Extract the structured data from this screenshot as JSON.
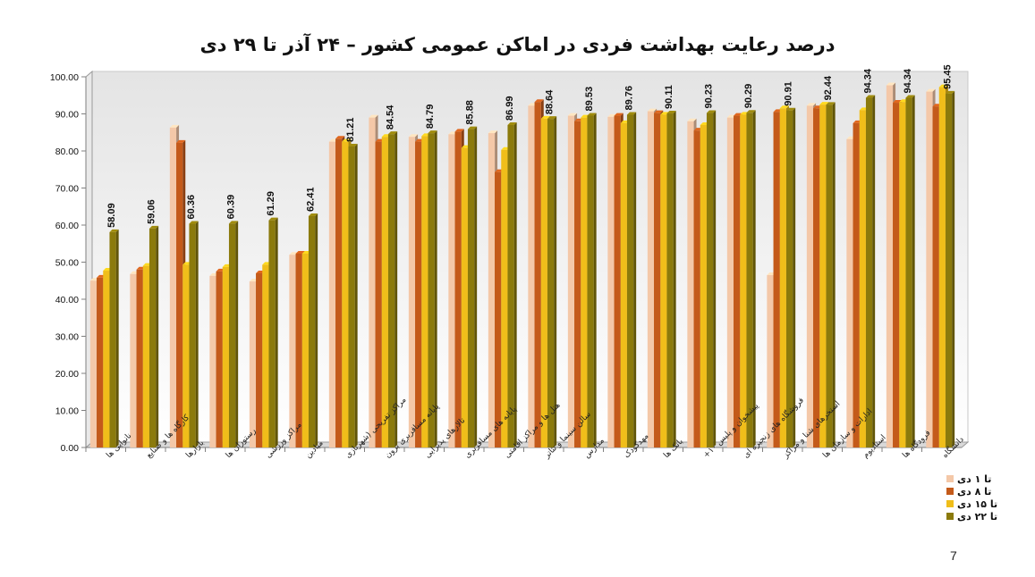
{
  "chart_data": {
    "type": "bar",
    "title": "درصد رعایت بهداشت فردی در اماکن عمومی کشور  –  ۲۴ آذر تا  ۲۹ دی",
    "xlabel": "",
    "ylabel": "",
    "ylim": [
      0,
      100
    ],
    "yticks": [
      "0.00",
      "10.00",
      "20.00",
      "30.00",
      "40.00",
      "50.00",
      "60.00",
      "70.00",
      "80.00",
      "90.00",
      "100.00"
    ],
    "grid": false,
    "legend_position": "right",
    "categories": [
      "نانوایی ها",
      "کارگاه ها و صنایع ",
      "بازارها",
      "رستوران ها",
      "مراکز ورزشی",
      "میادین",
      "مراکز تفریحی (شهربازی ",
      "پایانه مسافربری برون ",
      "تالارهای پذیرایی",
      "پایانه های مسافربری",
      "هتل ها و مراکز اقامتی",
      "سالن سینما و تئاتر",
      "مدارس",
      "مهدکودک",
      "بانک ها",
      "پیشخوان و پلیس ۱۰+",
      "فروشگاه های زنجیره ای",
      "استخرهای شنا و مراکز ",
      "ادارات و سازمان ها",
      "استادیوم",
      "فرودگاه ها",
      "دانشگاه"
    ],
    "series": [
      {
        "name": "تا ۱ دی",
        "color": "#F4C8A8",
        "values": [
          45.0,
          46.8,
          86.3,
          46.3,
          44.8,
          52.0,
          82.5,
          89.0,
          83.8,
          84.5,
          84.8,
          92.2,
          89.5,
          89.2,
          90.7,
          88.0,
          89.0,
          46.5,
          92.2,
          83.2,
          97.7,
          96.0
        ]
      },
      {
        "name": "تا ۸ دی",
        "color": "#C45A1A",
        "values": [
          45.8,
          48.0,
          82.2,
          47.5,
          47.0,
          52.3,
          83.3,
          82.5,
          82.5,
          85.2,
          74.3,
          93.2,
          88.0,
          89.5,
          90.2,
          85.5,
          89.5,
          90.5,
          91.5,
          87.5,
          93.0,
          92.0
        ]
      },
      {
        "name": "تا ۱۵ دی",
        "color": "#F0BE1A",
        "values": [
          47.7,
          49.0,
          49.3,
          48.7,
          49.3,
          52.3,
          82.5,
          83.8,
          84.0,
          80.8,
          80.3,
          88.7,
          89.0,
          87.5,
          89.8,
          87.0,
          89.8,
          91.5,
          92.5,
          91.0,
          93.2,
          97.2
        ]
      },
      {
        "name": "تا ۲۲ دی",
        "color": "#8B7A0C",
        "values": [
          58.09,
          59.06,
          60.36,
          60.39,
          61.29,
          62.41,
          81.21,
          84.54,
          84.79,
          85.88,
          86.99,
          88.64,
          89.53,
          89.76,
          90.11,
          90.23,
          90.29,
          90.91,
          92.44,
          94.34,
          94.34,
          95.45
        ]
      }
    ],
    "data_labels": [
      "58.09",
      "59.06",
      "60.36",
      "60.39",
      "61.29",
      "62.41",
      "81.21",
      "84.54",
      "84.79",
      "85.88",
      "86.99",
      "88.64",
      "89.53",
      "89.76",
      "90.11",
      "90.23",
      "90.29",
      "90.91",
      "92.44",
      "94.34",
      "94.34",
      "95.45"
    ]
  },
  "page": {
    "slide_number": "7"
  }
}
